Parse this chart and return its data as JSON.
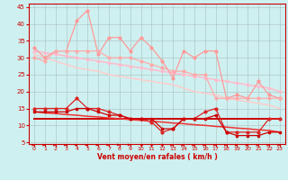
{
  "bg_color": "#cff0f0",
  "grid_color": "#b0c8c8",
  "xlabel": "Vent moyen/en rafales ( km/h )",
  "xlabel_color": "#cc0000",
  "tick_color": "#cc0000",
  "ylim": [
    4.5,
    46
  ],
  "xlim": [
    -0.5,
    23.5
  ],
  "yticks": [
    5,
    10,
    15,
    20,
    25,
    30,
    35,
    40,
    45
  ],
  "xticks": [
    0,
    1,
    2,
    3,
    4,
    5,
    6,
    7,
    8,
    9,
    10,
    11,
    12,
    13,
    14,
    15,
    16,
    17,
    18,
    19,
    20,
    21,
    22,
    23
  ],
  "lines": [
    {
      "y": [
        33,
        30,
        32,
        32,
        41,
        44,
        31,
        36,
        36,
        32,
        36,
        33,
        29,
        24,
        32,
        30,
        32,
        32,
        18,
        19,
        18,
        23,
        19,
        18
      ],
      "color": "#ff9999",
      "lw": 0.9,
      "marker": "o",
      "ms": 2.0,
      "zorder": 4
    },
    {
      "y": [
        32,
        31.5,
        31,
        30.5,
        30,
        29.5,
        29,
        28.5,
        28,
        27.5,
        27,
        26.5,
        26,
        25.5,
        25,
        24.5,
        24,
        23.5,
        23,
        22.5,
        22,
        21.5,
        21,
        20
      ],
      "color": "#ffbbcc",
      "lw": 1.1,
      "marker": "D",
      "ms": 1.5,
      "zorder": 3
    },
    {
      "y": [
        31,
        30,
        29,
        28,
        27,
        26.5,
        26,
        25,
        24.5,
        24,
        23.5,
        23,
        22.5,
        22,
        21,
        20,
        19.5,
        19,
        18,
        17.5,
        17,
        16.5,
        16,
        15
      ],
      "color": "#ffcccc",
      "lw": 1.1,
      "marker": null,
      "ms": 0,
      "zorder": 2
    },
    {
      "y": [
        30,
        29,
        32,
        32,
        32,
        32,
        32,
        30,
        30,
        30,
        29,
        28,
        27,
        26,
        26,
        25,
        25,
        18,
        18,
        18,
        18,
        18,
        18,
        18
      ],
      "color": "#ffaaaa",
      "lw": 0.9,
      "marker": "o",
      "ms": 2.0,
      "zorder": 4
    },
    {
      "y": [
        15,
        15,
        15,
        15,
        18,
        15,
        15,
        14,
        13,
        12,
        12,
        11,
        8,
        9,
        12,
        12,
        14,
        15,
        8,
        8,
        8,
        8,
        12,
        12
      ],
      "color": "#dd2222",
      "lw": 0.9,
      "marker": "o",
      "ms": 2.0,
      "zorder": 4
    },
    {
      "y": [
        12,
        12,
        12,
        12,
        12,
        12,
        12,
        12,
        12,
        12,
        12,
        12,
        12,
        12,
        12,
        12,
        12,
        12,
        12,
        12,
        12,
        12,
        12,
        12
      ],
      "color": "#cc0000",
      "lw": 1.4,
      "marker": null,
      "ms": 0,
      "zorder": 2
    },
    {
      "y": [
        14,
        14,
        14,
        14,
        15,
        15,
        14,
        13,
        13,
        12,
        12,
        12,
        9,
        9,
        12,
        12,
        12,
        13,
        8,
        7,
        7,
        7,
        8,
        8
      ],
      "color": "#cc0000",
      "lw": 0.9,
      "marker": "s",
      "ms": 1.8,
      "zorder": 4
    },
    {
      "y": [
        14,
        13.7,
        13.5,
        13.2,
        13,
        12.7,
        12.5,
        12.2,
        12,
        11.7,
        11.5,
        11.2,
        11,
        10.7,
        10.5,
        10.2,
        10,
        9.7,
        9.5,
        9.2,
        9,
        8.7,
        8.5,
        8
      ],
      "color": "#ee3333",
      "lw": 1.1,
      "marker": null,
      "ms": 0,
      "zorder": 2
    }
  ],
  "wind_dirs": [
    90,
    90,
    90,
    90,
    90,
    90,
    100,
    110,
    120,
    120,
    130,
    140,
    150,
    60,
    60,
    80,
    90,
    90,
    90,
    90,
    90,
    90,
    90,
    110
  ]
}
